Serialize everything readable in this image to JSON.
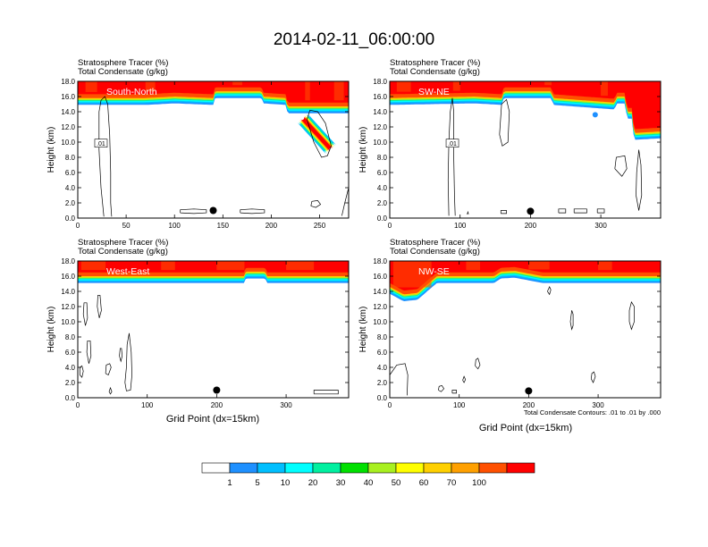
{
  "figure": {
    "title": "2014-02-11_06:00:00",
    "subtitle_line1": "Stratosphere Tracer   (%)",
    "subtitle_line2": "Total Condensate   (g/kg)",
    "contour_info": "Total Condensate Contours: .01 to .01 by .000",
    "ylabel": "Height (km)",
    "xlabel": "Grid Point (dx=15km)"
  },
  "chart_data": [
    {
      "type": "heatmap",
      "panel_label": "South-North",
      "xlim": [
        0,
        280
      ],
      "ylim": [
        0,
        18
      ],
      "xticks": [
        0,
        50,
        100,
        150,
        200,
        250
      ],
      "yticks": [
        "0.0",
        "2.0",
        "4.0",
        "6.0",
        "8.0",
        "10.0",
        "12.0",
        "14.0",
        "16.0",
        "18.0"
      ],
      "tropopause_km": [
        [
          0,
          15.4
        ],
        [
          70,
          15.4
        ],
        [
          100,
          15.6
        ],
        [
          140,
          15.4
        ],
        [
          142,
          16.3
        ],
        [
          190,
          16.3
        ],
        [
          192,
          15.6
        ],
        [
          215,
          15.4
        ],
        [
          217,
          14.3
        ],
        [
          280,
          14.3
        ]
      ],
      "streaks_x": [
        [
          8,
          20
        ],
        [
          70,
          80
        ],
        [
          160,
          170
        ],
        [
          235,
          240
        ],
        [
          265,
          275
        ]
      ],
      "intrusion": {
        "x_start": 232,
        "y_start": 13.2,
        "x_end": 262,
        "y_end": 9.0,
        "half_width": 7
      },
      "contour_label": ".01",
      "contour_label_pos": [
        24,
        9.8
      ],
      "contours": [
        [
          [
            27,
            0.2
          ],
          [
            24,
            4
          ],
          [
            22,
            9
          ],
          [
            22,
            14
          ],
          [
            24,
            15.5
          ],
          [
            28,
            16
          ],
          [
            31,
            15
          ],
          [
            33,
            11
          ],
          [
            34,
            6
          ],
          [
            34,
            2
          ],
          [
            35,
            0.2
          ]
        ],
        [
          [
            106,
            0.7
          ],
          [
            120,
            0.6
          ],
          [
            133,
            0.7
          ],
          [
            133,
            1.1
          ],
          [
            120,
            1.2
          ],
          [
            106,
            1.1
          ],
          [
            106,
            0.7
          ]
        ],
        [
          [
            168,
            0.7
          ],
          [
            180,
            0.6
          ],
          [
            193,
            0.7
          ],
          [
            193,
            1.1
          ],
          [
            180,
            1.2
          ],
          [
            168,
            1.1
          ],
          [
            168,
            0.7
          ]
        ],
        [
          [
            241,
            1.6
          ],
          [
            246,
            1.4
          ],
          [
            251,
            1.8
          ],
          [
            248,
            2.3
          ],
          [
            242,
            2.2
          ],
          [
            241,
            1.6
          ]
        ],
        [
          [
            273,
            0.3
          ],
          [
            276,
            2
          ],
          [
            280,
            4
          ],
          [
            280,
            0.3
          ]
        ],
        [
          [
            237,
            13
          ],
          [
            244,
            10
          ],
          [
            252,
            8
          ],
          [
            258,
            8.2
          ],
          [
            262,
            9.5
          ],
          [
            256,
            12.5
          ],
          [
            248,
            14
          ],
          [
            240,
            14.2
          ],
          [
            237,
            13
          ]
        ]
      ],
      "marker": {
        "x": 140,
        "y": 1.0
      }
    },
    {
      "type": "heatmap",
      "panel_label": "SW-NE",
      "xlim": [
        0,
        385
      ],
      "ylim": [
        0,
        18
      ],
      "xticks": [
        0,
        100,
        200,
        300
      ],
      "yticks": [
        "0.0",
        "2.0",
        "4.0",
        "6.0",
        "8.0",
        "10.0",
        "12.0",
        "14.0",
        "16.0",
        "18.0"
      ],
      "tropopause_km": [
        [
          0,
          15.4
        ],
        [
          120,
          15.6
        ],
        [
          160,
          15.4
        ],
        [
          162,
          16.3
        ],
        [
          230,
          16.3
        ],
        [
          232,
          15.4
        ],
        [
          320,
          14.8
        ],
        [
          322,
          15.6
        ],
        [
          335,
          15.6
        ],
        [
          337,
          13.6
        ],
        [
          345,
          13.6
        ],
        [
          347,
          10.8
        ],
        [
          385,
          11.0
        ]
      ],
      "streaks_x": [
        [
          10,
          30
        ],
        [
          90,
          100
        ],
        [
          220,
          230
        ],
        [
          300,
          310
        ]
      ],
      "blue_dot": {
        "x": 292,
        "y": 13.6
      },
      "contour_label": ".01",
      "contour_label_pos": [
        89,
        9.8
      ],
      "contours": [
        [
          [
            84,
            0.3
          ],
          [
            83,
            5
          ],
          [
            84,
            10
          ],
          [
            86,
            14
          ],
          [
            89,
            15.8
          ],
          [
            91,
            14
          ],
          [
            91,
            8
          ],
          [
            92,
            3
          ],
          [
            93,
            0.3
          ]
        ],
        [
          [
            156,
            11
          ],
          [
            160,
            9.5
          ],
          [
            168,
            10
          ],
          [
            170,
            14
          ],
          [
            166,
            15.6
          ],
          [
            159,
            15
          ],
          [
            156,
            11
          ]
        ],
        [
          [
            320,
            6.5
          ],
          [
            330,
            5.5
          ],
          [
            337,
            6.5
          ],
          [
            334,
            8.2
          ],
          [
            322,
            8
          ],
          [
            320,
            6.5
          ]
        ],
        [
          [
            350,
            3
          ],
          [
            354,
            1
          ],
          [
            358,
            3
          ],
          [
            357,
            7
          ],
          [
            354,
            9
          ],
          [
            351,
            6
          ],
          [
            350,
            3
          ]
        ],
        [
          [
            110,
            0.5
          ],
          [
            111,
            0.8
          ],
          [
            112,
            0.5
          ]
        ],
        [
          [
            158,
            0.6
          ],
          [
            166,
            0.6
          ],
          [
            166,
            1.0
          ],
          [
            158,
            1.0
          ],
          [
            158,
            0.6
          ]
        ],
        [
          [
            240,
            0.7
          ],
          [
            250,
            0.7
          ],
          [
            250,
            1.2
          ],
          [
            240,
            1.2
          ],
          [
            240,
            0.7
          ]
        ],
        [
          [
            262,
            0.7
          ],
          [
            280,
            0.7
          ],
          [
            280,
            1.2
          ],
          [
            262,
            1.2
          ],
          [
            262,
            0.7
          ]
        ],
        [
          [
            295,
            0.7
          ],
          [
            305,
            0.7
          ],
          [
            305,
            1.2
          ],
          [
            295,
            1.2
          ],
          [
            295,
            0.7
          ]
        ]
      ],
      "marker": {
        "x": 200,
        "y": 0.9
      }
    },
    {
      "type": "heatmap",
      "panel_label": "West-East",
      "xlim": [
        0,
        390
      ],
      "ylim": [
        0,
        18
      ],
      "xticks": [
        0,
        100,
        200,
        300
      ],
      "yticks": [
        "0.0",
        "2.0",
        "4.0",
        "6.0",
        "8.0",
        "10.0",
        "12.0",
        "14.0",
        "16.0",
        "18.0"
      ],
      "tropopause_km": [
        [
          0,
          15.6
        ],
        [
          240,
          15.6
        ],
        [
          242,
          16.2
        ],
        [
          270,
          16.2
        ],
        [
          272,
          15.6
        ],
        [
          390,
          15.6
        ]
      ],
      "streaks_x": [
        [
          5,
          40
        ],
        [
          120,
          140
        ],
        [
          200,
          240
        ],
        [
          300,
          340
        ]
      ],
      "contours": [
        [
          [
            28,
            12
          ],
          [
            31,
            10.5
          ],
          [
            34,
            11.5
          ],
          [
            32,
            13.5
          ],
          [
            29,
            13.5
          ],
          [
            28,
            12
          ]
        ],
        [
          [
            8,
            11
          ],
          [
            11,
            9.5
          ],
          [
            14,
            10.5
          ],
          [
            13,
            12.5
          ],
          [
            9,
            12.5
          ],
          [
            8,
            11
          ]
        ],
        [
          [
            13,
            6
          ],
          [
            16,
            4.5
          ],
          [
            19,
            5.5
          ],
          [
            18,
            7.5
          ],
          [
            14,
            7.5
          ],
          [
            13,
            6
          ]
        ],
        [
          [
            68,
            2
          ],
          [
            70,
            4
          ],
          [
            71,
            7
          ],
          [
            74,
            8.5
          ],
          [
            77,
            6
          ],
          [
            78,
            3
          ],
          [
            76,
            1
          ],
          [
            70,
            0.9
          ],
          [
            68,
            2
          ]
        ],
        [
          [
            60,
            5.5
          ],
          [
            62,
            4.8
          ],
          [
            64,
            5.5
          ],
          [
            63,
            6.5
          ],
          [
            61,
            6.5
          ],
          [
            60,
            5.5
          ]
        ],
        [
          [
            3,
            3
          ],
          [
            6,
            2.7
          ],
          [
            8,
            3.5
          ],
          [
            6,
            4.2
          ],
          [
            3,
            4
          ],
          [
            3,
            3
          ]
        ],
        [
          [
            40,
            3.2
          ],
          [
            44,
            3
          ],
          [
            48,
            4
          ],
          [
            46,
            4.5
          ],
          [
            41,
            4.3
          ],
          [
            40,
            3.2
          ]
        ],
        [
          [
            45,
            0.8
          ],
          [
            47,
            0.5
          ],
          [
            49,
            0.8
          ],
          [
            47,
            1.3
          ],
          [
            45,
            0.8
          ]
        ],
        [
          [
            340,
            0.5
          ],
          [
            375,
            0.5
          ],
          [
            375,
            1.0
          ],
          [
            340,
            1.0
          ],
          [
            340,
            0.5
          ]
        ]
      ],
      "marker": {
        "x": 200,
        "y": 1.0
      }
    },
    {
      "type": "heatmap",
      "panel_label": "NW-SE",
      "xlim": [
        0,
        390
      ],
      "ylim": [
        0,
        18
      ],
      "xticks": [
        0,
        100,
        200,
        300
      ],
      "yticks": [
        "0.0",
        "2.0",
        "4.0",
        "6.0",
        "8.0",
        "10.0",
        "12.0",
        "14.0",
        "16.0",
        "18.0"
      ],
      "tropopause_km": [
        [
          0,
          14.2
        ],
        [
          20,
          13.2
        ],
        [
          40,
          13.4
        ],
        [
          55,
          14.6
        ],
        [
          68,
          15.6
        ],
        [
          150,
          15.6
        ],
        [
          160,
          16.2
        ],
        [
          180,
          16.3
        ],
        [
          220,
          15.6
        ],
        [
          390,
          15.6
        ]
      ],
      "streaks_x": [
        [
          5,
          60
        ],
        [
          110,
          130
        ],
        [
          200,
          230
        ],
        [
          300,
          320
        ]
      ],
      "contours": [
        [
          [
            0,
            0.3
          ],
          [
            0,
            3
          ],
          [
            10,
            4.3
          ],
          [
            22,
            4.5
          ],
          [
            26,
            3
          ],
          [
            25,
            0.3
          ]
        ],
        [
          [
            123,
            4.2
          ],
          [
            127,
            3.8
          ],
          [
            130,
            4.3
          ],
          [
            127,
            5.2
          ],
          [
            124,
            5
          ],
          [
            123,
            4.2
          ]
        ],
        [
          [
            70,
            1
          ],
          [
            74,
            0.8
          ],
          [
            78,
            1.2
          ],
          [
            75,
            1.6
          ],
          [
            71,
            1.5
          ],
          [
            70,
            1
          ]
        ],
        [
          [
            90,
            0.6
          ],
          [
            96,
            0.6
          ],
          [
            96,
            1.0
          ],
          [
            90,
            1.0
          ],
          [
            90,
            0.6
          ]
        ],
        [
          [
            105,
            2.3
          ],
          [
            107,
            2
          ],
          [
            109,
            2.4
          ],
          [
            107,
            2.8
          ],
          [
            105,
            2.3
          ]
        ],
        [
          [
            290,
            2.5
          ],
          [
            293,
            2
          ],
          [
            296,
            2.8
          ],
          [
            294,
            3.4
          ],
          [
            291,
            3.2
          ],
          [
            290,
            2.5
          ]
        ],
        [
          [
            227,
            14
          ],
          [
            230,
            13.6
          ],
          [
            232,
            14.2
          ],
          [
            230,
            14.6
          ],
          [
            227,
            14
          ]
        ],
        [
          [
            345,
            10
          ],
          [
            348,
            9
          ],
          [
            352,
            10
          ],
          [
            352,
            12
          ],
          [
            348,
            12.6
          ],
          [
            345,
            11.5
          ],
          [
            345,
            10
          ]
        ],
        [
          [
            260,
            10
          ],
          [
            262,
            9
          ],
          [
            264,
            9.5
          ],
          [
            264,
            11
          ],
          [
            262,
            11.5
          ],
          [
            260,
            10
          ]
        ]
      ],
      "marker": {
        "x": 200,
        "y": 0.9
      }
    }
  ],
  "colorbar": {
    "labels": [
      "1",
      "5",
      "10",
      "20",
      "30",
      "40",
      "50",
      "60",
      "70",
      "100"
    ],
    "colors": [
      "#ffffff",
      "#1e90ff",
      "#00bfff",
      "#00ffff",
      "#00f0a0",
      "#00e000",
      "#a8f020",
      "#ffff00",
      "#ffd000",
      "#ffa000",
      "#ff5000",
      "#ff0000"
    ]
  }
}
